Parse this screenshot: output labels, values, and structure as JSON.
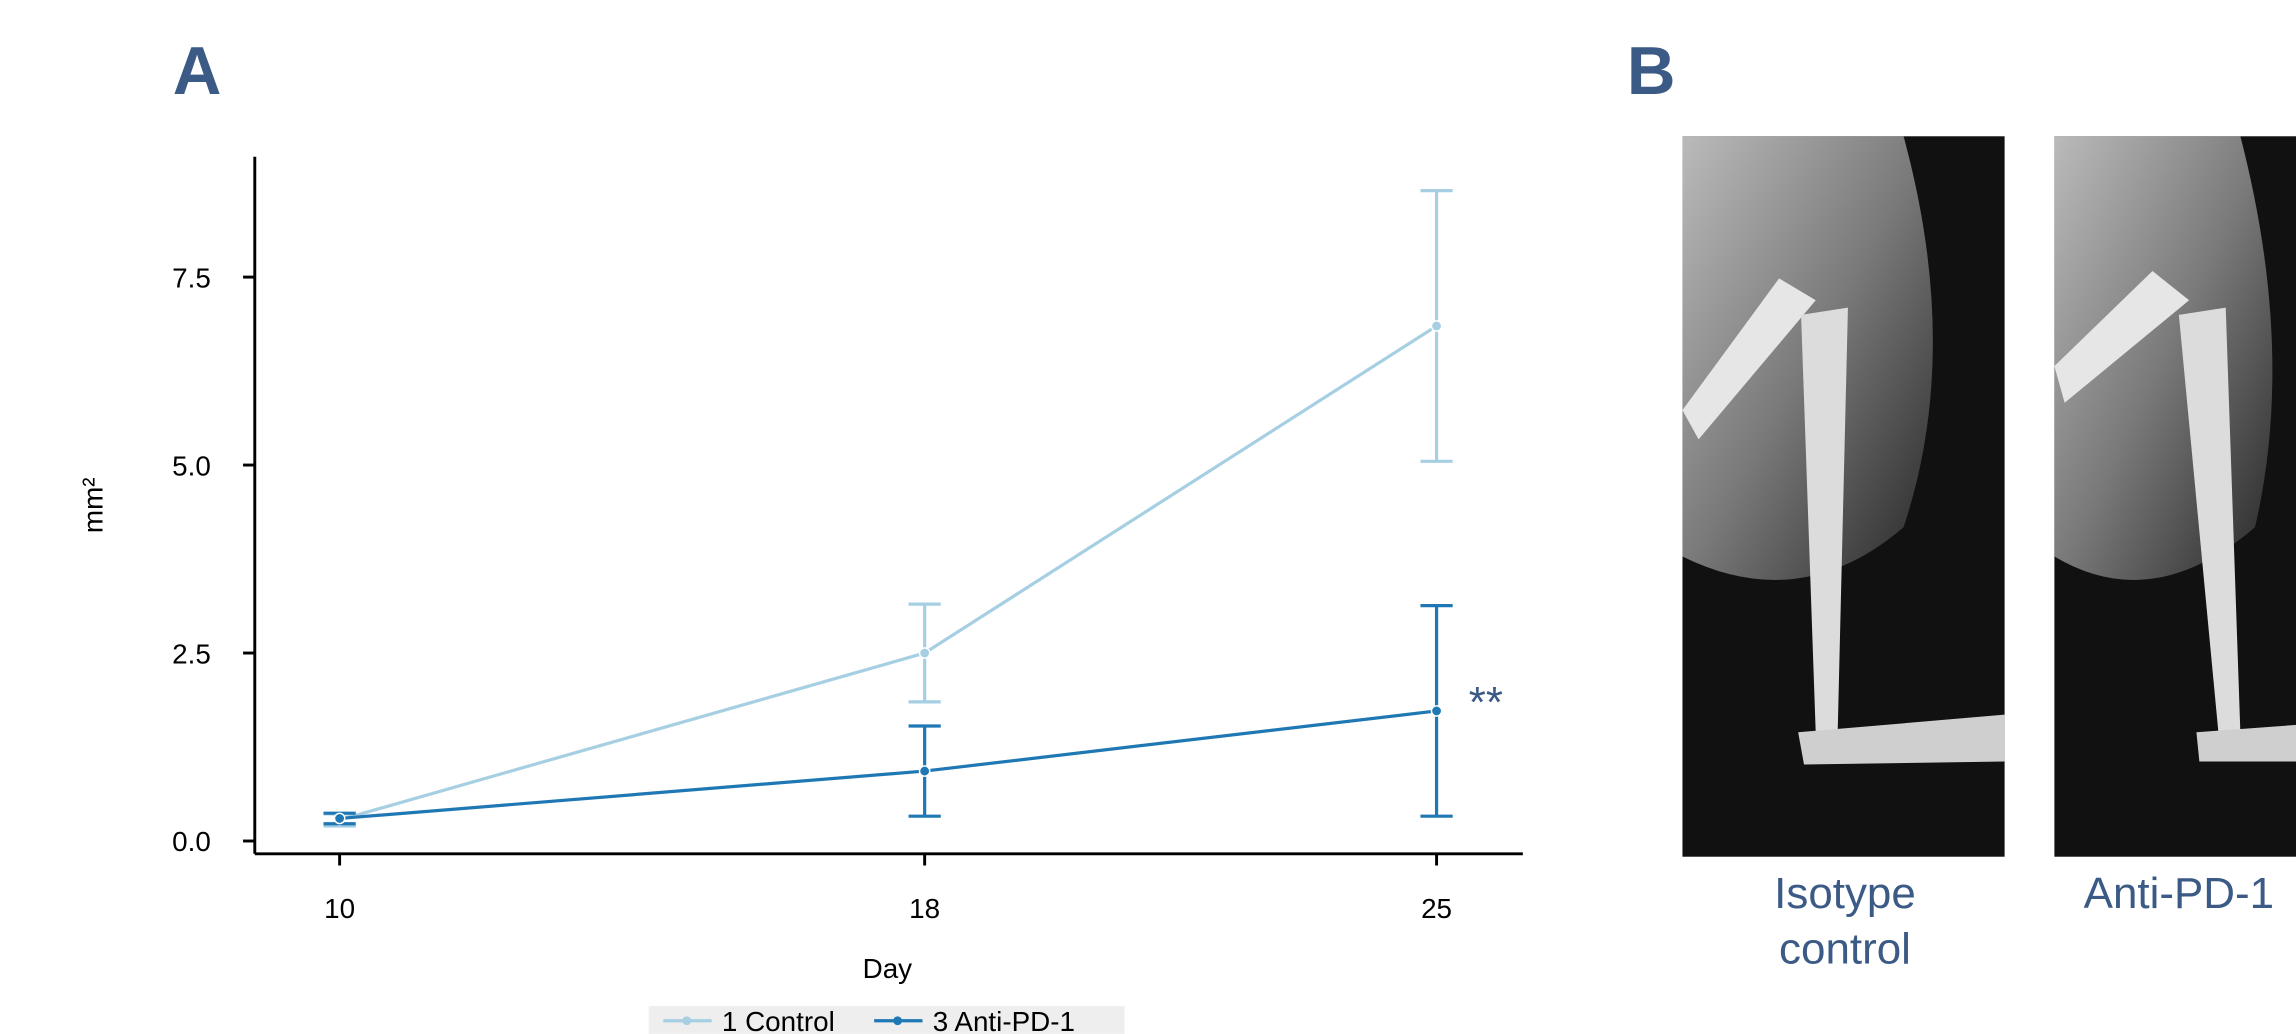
{
  "chart_data": {
    "type": "line",
    "x_label": "Day",
    "y_label": "mm²",
    "x": [
      10,
      18,
      25
    ],
    "series": [
      {
        "name": "1 Control",
        "color": "#a6cfe3",
        "values": [
          0.28,
          2.5,
          6.85
        ],
        "errors": [
          0.08,
          0.65,
          1.8
        ]
      },
      {
        "name": "3 Anti-PD-1",
        "color": "#1f78b4",
        "values": [
          0.3,
          0.93,
          1.73
        ],
        "errors": [
          0.07,
          0.6,
          1.4
        ]
      }
    ],
    "xlim": [
      8.84,
      26.18
    ],
    "ylim": [
      -0.17,
      9.1
    ],
    "xticks": [
      10,
      18,
      25
    ],
    "yticks": [
      {
        "value": 0,
        "label": "0.0"
      },
      2.5,
      {
        "value": 5,
        "label": "5.0"
      },
      7.5
    ],
    "annotation": "**",
    "legend": "bottom"
  },
  "figure": {
    "panel_a": "A",
    "panel_b": "B",
    "captions": [
      "Isotype control",
      "Anti-PD-1"
    ]
  }
}
